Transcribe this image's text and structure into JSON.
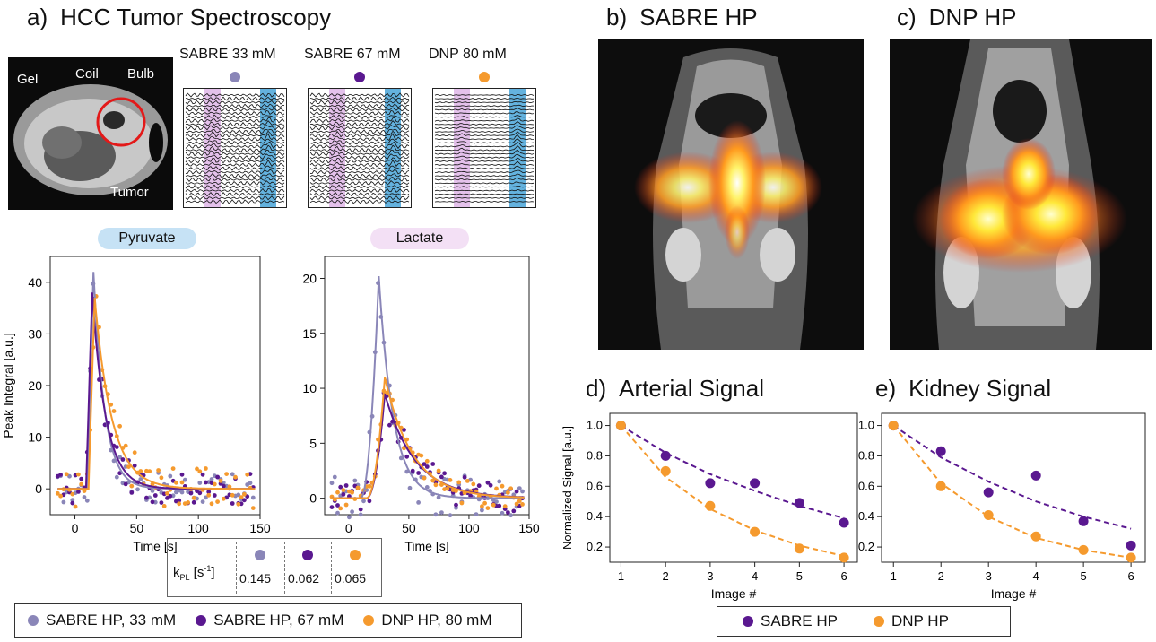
{
  "colors": {
    "sabre33": "#8a86b8",
    "sabre67": "#5a1890",
    "dnp": "#f59a2e",
    "pyr_bg": "#c6e2f5",
    "lac_bg": "#f3e0f5",
    "pyr_band": "#3d9fd6",
    "lac_band": "#d9a6e3"
  },
  "panel_a": {
    "label": "a)",
    "title": "HCC Tumor Spectroscopy",
    "anatomy": {
      "gel": "Gel",
      "coil": "Coil",
      "bulb": "Bulb",
      "tumor": "Tumor"
    },
    "spectra": [
      {
        "label": "SABRE 33 mM",
        "color": "#8a86b8"
      },
      {
        "label": "SABRE 67 mM",
        "color": "#5a1890"
      },
      {
        "label": "DNP 80 mM",
        "color": "#f59a2e"
      }
    ],
    "pyruvate": "Pyruvate",
    "lactate": "Lactate"
  },
  "panel_b": {
    "label": "b)",
    "title": "SABRE HP"
  },
  "panel_c": {
    "label": "c)",
    "title": "DNP HP"
  },
  "panel_d": {
    "label": "d)",
    "title": "Arterial Signal"
  },
  "panel_e": {
    "label": "e)",
    "title": "Kidney Signal"
  },
  "kpl": {
    "label": "k",
    "sub": "PL",
    "unit": " [s",
    "sup": "-1",
    "close": "]",
    "values": [
      "0.145",
      "0.062",
      "0.065"
    ]
  },
  "legend_a": [
    "SABRE HP, 33 mM",
    "SABRE HP, 67 mM",
    "DNP HP, 80 mM"
  ],
  "legend_de": [
    "SABRE HP",
    "DNP HP"
  ],
  "chart_data": [
    {
      "id": "pyruvate",
      "type": "scatter",
      "xlabel": "Time [s]",
      "ylabel": "Peak Integral [a.u.]",
      "xlim": [
        -20,
        150
      ],
      "ylim": [
        -5,
        45
      ],
      "xticks": [
        0,
        50,
        100,
        150
      ],
      "yticks": [
        0,
        10,
        20,
        30,
        40
      ],
      "series": [
        {
          "name": "SABRE HP, 33 mM",
          "peak": 42,
          "t0": 10,
          "decay": 9,
          "sigma": 3
        },
        {
          "name": "SABRE HP, 67 mM",
          "peak": 38,
          "t0": 9,
          "decay": 11,
          "sigma": 3
        },
        {
          "name": "DNP HP, 80 mM",
          "peak": 37,
          "t0": 11,
          "decay": 14,
          "sigma": 4
        }
      ]
    },
    {
      "id": "lactate",
      "type": "scatter",
      "xlabel": "Time [s]",
      "ylabel": "",
      "xlim": [
        -20,
        150
      ],
      "ylim": [
        -1.5,
        22
      ],
      "xticks": [
        0,
        50,
        100,
        150
      ],
      "yticks": [
        0,
        5,
        10,
        15,
        20
      ],
      "series": [
        {
          "name": "SABRE HP, 33 mM",
          "peak": 20.2,
          "t0": 25,
          "rise": 9,
          "decay": 12,
          "sigma": 2
        },
        {
          "name": "SABRE HP, 67 mM",
          "peak": 9.5,
          "t0": 30,
          "rise": 11,
          "decay": 25,
          "sigma": 1.5
        },
        {
          "name": "DNP HP, 80 mM",
          "peak": 11,
          "t0": 30,
          "rise": 11,
          "decay": 23,
          "sigma": 1.2
        }
      ]
    },
    {
      "id": "arterial",
      "type": "scatter",
      "xlabel": "Image #",
      "ylabel": "Normalized Signal [a.u.]",
      "xlim": [
        0.75,
        6.3
      ],
      "ylim": [
        0.1,
        1.08
      ],
      "xticks": [
        1,
        2,
        3,
        4,
        5,
        6
      ],
      "yticks": [
        0.2,
        0.4,
        0.6,
        0.8,
        1.0
      ],
      "series": [
        {
          "name": "SABRE HP",
          "x": [
            1,
            2,
            3,
            4,
            5,
            6
          ],
          "y": [
            1.0,
            0.8,
            0.62,
            0.62,
            0.49,
            0.36
          ],
          "fit": [
            1.0,
            0.82,
            0.68,
            0.57,
            0.47,
            0.39
          ]
        },
        {
          "name": "DNP HP",
          "x": [
            1,
            2,
            3,
            4,
            5,
            6
          ],
          "y": [
            1.0,
            0.7,
            0.47,
            0.3,
            0.19,
            0.13
          ],
          "fit": [
            1.0,
            0.66,
            0.45,
            0.31,
            0.21,
            0.14
          ]
        }
      ]
    },
    {
      "id": "kidney",
      "type": "scatter",
      "xlabel": "Image #",
      "ylabel": "",
      "xlim": [
        0.75,
        6.3
      ],
      "ylim": [
        0.1,
        1.08
      ],
      "xticks": [
        1,
        2,
        3,
        4,
        5,
        6
      ],
      "yticks": [
        0.2,
        0.4,
        0.6,
        0.8,
        1.0
      ],
      "series": [
        {
          "name": "SABRE HP",
          "x": [
            1,
            2,
            3,
            4,
            5,
            6
          ],
          "y": [
            1.0,
            0.83,
            0.56,
            0.67,
            0.37,
            0.21
          ],
          "fit": [
            1.0,
            0.79,
            0.63,
            0.5,
            0.4,
            0.32
          ]
        },
        {
          "name": "DNP HP",
          "x": [
            1,
            2,
            3,
            4,
            5,
            6
          ],
          "y": [
            1.0,
            0.6,
            0.41,
            0.27,
            0.18,
            0.13
          ],
          "fit": [
            1.0,
            0.62,
            0.4,
            0.26,
            0.18,
            0.13
          ]
        }
      ]
    }
  ]
}
